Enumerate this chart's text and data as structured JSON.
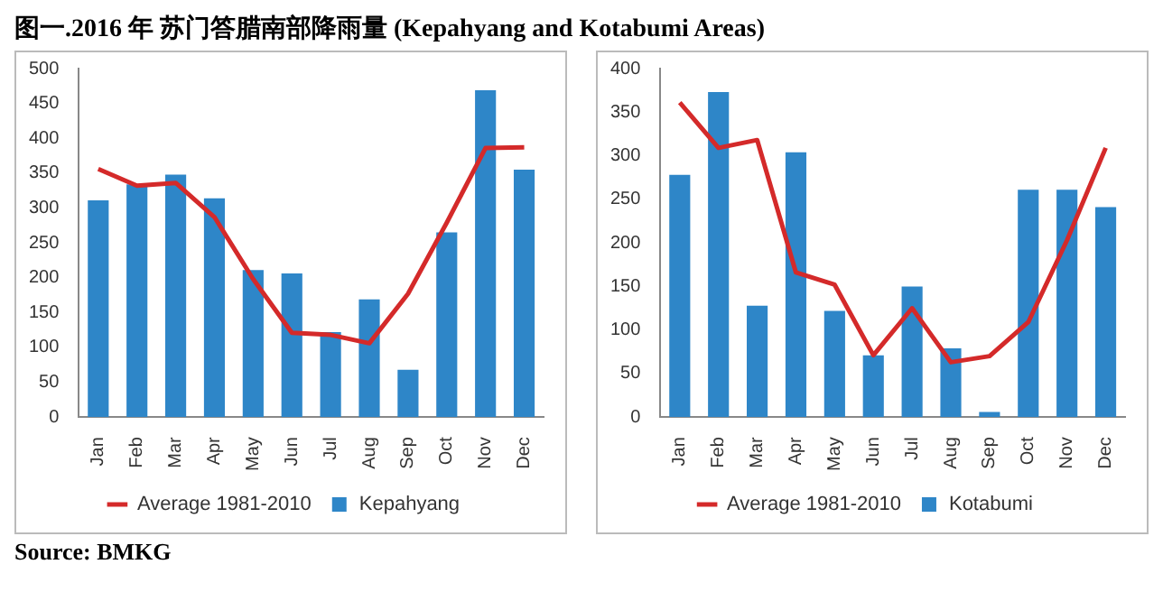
{
  "chart_data": [
    {
      "type": "bar",
      "title": "图一.2016 年 苏门答腊南部降雨量 (Kepahyang and Kotabumi Areas)",
      "annotations": [
        "Source: BMKG"
      ],
      "categories": [
        "Jan",
        "Feb",
        "Mar",
        "Apr",
        "May",
        "Jun",
        "Jul",
        "Aug",
        "Sep",
        "Oct",
        "Nov",
        "Dec"
      ],
      "series": [
        {
          "name": "Kepahyang",
          "color": "#2e86c8",
          "values": [
            311,
            334,
            348,
            314,
            211,
            206,
            122,
            169,
            68,
            265,
            469,
            355
          ]
        },
        {
          "name": "Average 1981-2010",
          "type": "line",
          "color": "#d42a2a",
          "values": [
            356,
            332,
            336,
            287,
            198,
            121,
            118,
            106,
            177,
            279,
            386,
            387
          ]
        }
      ],
      "ylim": [
        0,
        500
      ],
      "yticks": [
        0,
        50,
        100,
        150,
        200,
        250,
        300,
        350,
        400,
        450,
        500
      ],
      "grid": false,
      "legend": "bottom",
      "marker": "none"
    },
    {
      "type": "bar",
      "categories": [
        "Jan",
        "Feb",
        "Mar",
        "Apr",
        "May",
        "Jun",
        "Jul",
        "Aug",
        "Sep",
        "Oct",
        "Nov",
        "Dec"
      ],
      "series": [
        {
          "name": "Kotabumi",
          "color": "#2e86c8",
          "values": [
            278,
            373,
            128,
            304,
            122,
            71,
            150,
            79,
            6,
            261,
            261,
            241
          ]
        },
        {
          "name": "Average 1981-2010",
          "type": "line",
          "color": "#d42a2a",
          "values": [
            361,
            309,
            318,
            166,
            152,
            71,
            125,
            63,
            70,
            109,
            203,
            309
          ]
        }
      ],
      "ylim": [
        0,
        400
      ],
      "yticks": [
        0,
        50,
        100,
        150,
        200,
        250,
        300,
        350,
        400
      ],
      "grid": false,
      "legend": "bottom",
      "marker": "none"
    }
  ]
}
